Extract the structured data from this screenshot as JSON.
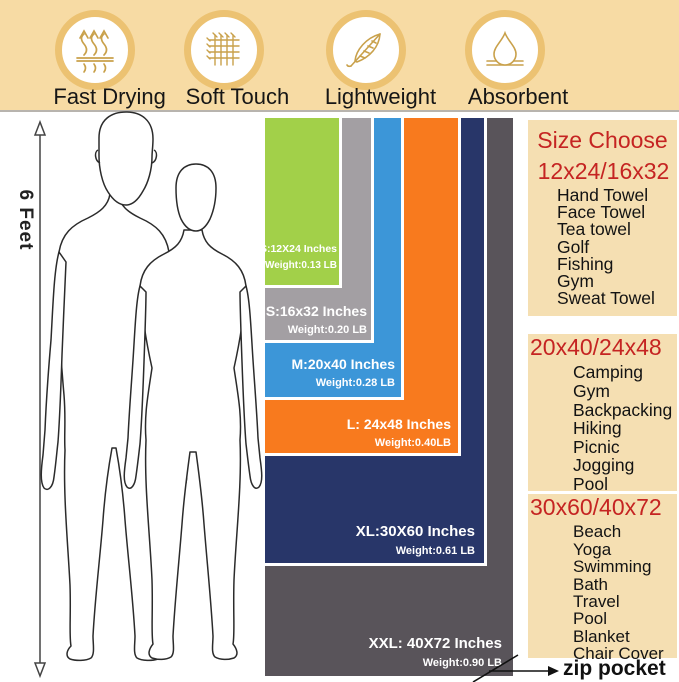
{
  "features": [
    {
      "label": "Fast Drying",
      "icon": "steam-arrows-icon"
    },
    {
      "label": "Soft Touch",
      "icon": "fabric-weave-icon"
    },
    {
      "label": "Lightweight",
      "icon": "feather-icon"
    },
    {
      "label": "Absorbent",
      "icon": "water-drop-icon"
    }
  ],
  "height_ruler": {
    "label": "6 Feet"
  },
  "sizes": [
    {
      "name": "XS",
      "label": "XS:12X24 Inches",
      "weight": "Weight:0.13 LB",
      "color": "#a2d049"
    },
    {
      "name": "S",
      "label": "S:16x32 Inches",
      "weight": "Weight:0.20 LB",
      "color": "#a39fa3"
    },
    {
      "name": "M",
      "label": "M:20x40 Inches",
      "weight": "Weight:0.28 LB",
      "color": "#3c96d8"
    },
    {
      "name": "L",
      "label": "L: 24x48 Inches",
      "weight": "Weight:0.40LB",
      "color": "#f87a1e"
    },
    {
      "name": "XL",
      "label": "XL:30X60 Inches",
      "weight": "Weight:0.61 LB",
      "color": "#283669"
    },
    {
      "name": "XXL",
      "label": "XXL: 40X72 Inches",
      "weight": "Weight:0.90 LB",
      "color": "#59545a"
    }
  ],
  "size_guide": {
    "title": "Size Choose",
    "groups": [
      {
        "range": "12x24/16x32",
        "uses": [
          "Hand Towel",
          "Face Towel",
          "Tea towel",
          "Golf",
          "Fishing",
          "Gym",
          "Sweat Towel"
        ]
      },
      {
        "range": "20x40/24x48",
        "uses": [
          "Camping",
          "Gym",
          "Backpacking",
          "Hiking",
          "Picnic",
          "Jogging",
          "Pool"
        ]
      },
      {
        "range": "30x60/40x72",
        "uses": [
          "Beach",
          "Yoga",
          "Swimming",
          "Bath",
          "Travel",
          "Pool",
          "Blanket",
          "Chair Cover"
        ]
      }
    ]
  },
  "zip_pocket": {
    "label": "zip pocket"
  },
  "colors": {
    "banner_bg": "#f7dba4",
    "panel_bg": "#f5dfb2",
    "accent_red": "#c52422",
    "icon_gold": "#c9a14b",
    "ring_gold": "#ecc272"
  }
}
